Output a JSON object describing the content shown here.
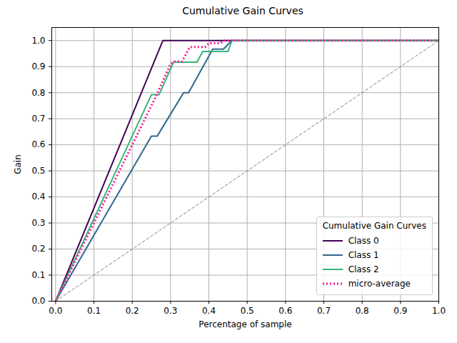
{
  "chart_data": {
    "type": "line",
    "title": "Cumulative Gain Curves",
    "x_label": "Percentage of sample",
    "y_label": "Gain",
    "legend_title": "Cumulative Gain Curves",
    "legend": "lower right",
    "grid": true,
    "xlim": [
      -0.01,
      1.0
    ],
    "ylim": [
      0,
      1.05
    ],
    "xticks": [
      {
        "value": 0,
        "label": "0.0"
      },
      0.1,
      0.2,
      0.3,
      0.4,
      0.5,
      0.6,
      0.7,
      0.8,
      0.9,
      {
        "value": 1,
        "label": "1.0"
      }
    ],
    "yticks": [
      {
        "value": 0,
        "label": "0.0"
      },
      0.1,
      0.2,
      0.3,
      0.4,
      0.5,
      0.6,
      0.7,
      0.8,
      0.9,
      {
        "value": 1,
        "label": "1.0"
      }
    ],
    "series": [
      {
        "name": "Class 0",
        "color": "#440154",
        "line_style": "solid",
        "x": [
          0,
          0.28,
          1.0
        ],
        "values": [
          0,
          1.0,
          1.0
        ]
      },
      {
        "name": "Class 1",
        "color": "#31688e",
        "line_style": "solid",
        "x": [
          0,
          0.25,
          0.265,
          0.334,
          0.347,
          0.41,
          0.438,
          0.46,
          1.0
        ],
        "values": [
          0,
          0.633,
          0.633,
          0.8,
          0.8,
          0.967,
          0.967,
          1.0,
          1.0
        ]
      },
      {
        "name": "Class 2",
        "color": "#35b779",
        "line_style": "solid",
        "x": [
          0,
          0.25,
          0.27,
          0.308,
          0.369,
          0.384,
          0.45,
          0.46,
          1.0
        ],
        "values": [
          0,
          0.792,
          0.792,
          0.917,
          0.917,
          0.958,
          0.958,
          1.0,
          1.0
        ]
      },
      {
        "name": "micro-average",
        "color": "#ff1493",
        "line_style": "dotted",
        "x": [
          0,
          0.26,
          0.3,
          0.31,
          0.33,
          0.35,
          0.39,
          0.4,
          0.43,
          0.44,
          1.0
        ],
        "values": [
          0,
          0.78,
          0.91,
          0.92,
          0.92,
          0.975,
          0.975,
          0.99,
          0.99,
          1.0,
          1.0
        ]
      },
      {
        "color": "#808080",
        "line_style": "dashed",
        "x": [
          0,
          1.0
        ],
        "values": [
          0,
          1.0
        ]
      }
    ]
  }
}
